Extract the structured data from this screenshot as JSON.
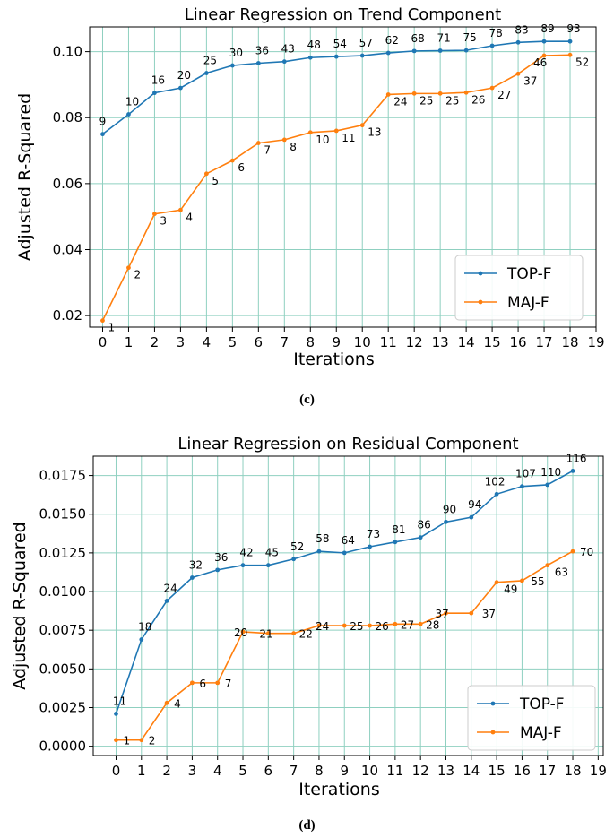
{
  "chart_data": [
    {
      "type": "line",
      "title": "Linear Regression on Trend Component",
      "xlabel": "Iterations",
      "ylabel": "Adjusted R-Squared",
      "caption": "(c)",
      "xlim": [
        -0.5,
        19
      ],
      "ylim": [
        0.0165,
        0.1075
      ],
      "xticks": [
        "0",
        "1",
        "2",
        "3",
        "4",
        "5",
        "6",
        "7",
        "8",
        "9",
        "10",
        "11",
        "12",
        "13",
        "14",
        "15",
        "16",
        "17",
        "18",
        "19"
      ],
      "yticks": [
        "0.02",
        "0.04",
        "0.06",
        "0.08",
        "0.10"
      ],
      "ytick_values": [
        0.02,
        0.04,
        0.06,
        0.08,
        0.1
      ],
      "grid": true,
      "legend_position": "lower-right",
      "series": [
        {
          "name": "TOP-F",
          "color": "#1f77b4",
          "x": [
            0,
            1,
            2,
            3,
            4,
            5,
            6,
            7,
            8,
            9,
            10,
            11,
            12,
            13,
            14,
            15,
            16,
            17,
            18
          ],
          "values": [
            0.075,
            0.081,
            0.0875,
            0.089,
            0.0935,
            0.0958,
            0.0965,
            0.097,
            0.0982,
            0.0985,
            0.0988,
            0.0996,
            0.1002,
            0.1003,
            0.1004,
            0.1018,
            0.1028,
            0.1031,
            0.1031
          ],
          "labels": [
            "9",
            "10",
            "16",
            "20",
            "25",
            "30",
            "36",
            "43",
            "48",
            "54",
            "57",
            "62",
            "68",
            "71",
            "75",
            "78",
            "83",
            "89",
            "93"
          ]
        },
        {
          "name": "MAJ-F",
          "color": "#ff7f0e",
          "x": [
            0,
            1,
            2,
            3,
            4,
            5,
            6,
            7,
            8,
            9,
            10,
            11,
            12,
            13,
            14,
            15,
            16,
            17,
            18
          ],
          "values": [
            0.0185,
            0.0345,
            0.0508,
            0.052,
            0.063,
            0.067,
            0.0723,
            0.0733,
            0.0755,
            0.076,
            0.0777,
            0.087,
            0.0873,
            0.0873,
            0.0876,
            0.089,
            0.0933,
            0.0988,
            0.099
          ],
          "labels": [
            "1",
            "2",
            "3",
            "4",
            "5",
            "6",
            "7",
            "8",
            "10",
            "11",
            "13",
            "24",
            "25",
            "25",
            "26",
            "27",
            "37",
            "46",
            "52"
          ]
        }
      ]
    },
    {
      "type": "line",
      "title": "Linear Regression on Residual Component",
      "xlabel": "Iterations",
      "ylabel": "Adjusted R-Squared",
      "caption": "(d)",
      "xlim": [
        -0.9,
        19.2
      ],
      "ylim": [
        -0.0006,
        0.01875
      ],
      "xticks": [
        "0",
        "1",
        "2",
        "3",
        "4",
        "5",
        "6",
        "7",
        "8",
        "9",
        "10",
        "11",
        "12",
        "13",
        "14",
        "15",
        "16",
        "17",
        "18",
        "19"
      ],
      "yticks": [
        "0.0000",
        "0.0025",
        "0.0050",
        "0.0075",
        "0.0100",
        "0.0125",
        "0.0150",
        "0.0175"
      ],
      "ytick_values": [
        0.0,
        0.0025,
        0.005,
        0.0075,
        0.01,
        0.0125,
        0.015,
        0.0175
      ],
      "grid": true,
      "legend_position": "lower-right",
      "series": [
        {
          "name": "TOP-F",
          "color": "#1f77b4",
          "x": [
            0,
            1,
            2,
            3,
            4,
            5,
            6,
            7,
            8,
            9,
            10,
            11,
            12,
            13,
            14,
            15,
            16,
            17,
            18
          ],
          "values": [
            0.0021,
            0.0069,
            0.0094,
            0.0109,
            0.0114,
            0.0117,
            0.0117,
            0.0121,
            0.0126,
            0.0125,
            0.0129,
            0.0132,
            0.0135,
            0.0145,
            0.0148,
            0.0163,
            0.0168,
            0.0169,
            0.0178
          ],
          "labels": [
            "11",
            "18",
            "24",
            "32",
            "36",
            "42",
            "45",
            "52",
            "58",
            "64",
            "73",
            "81",
            "86",
            "90",
            "94",
            "102",
            "107",
            "110",
            "116"
          ]
        },
        {
          "name": "MAJ-F",
          "color": "#ff7f0e",
          "x": [
            0,
            1,
            2,
            3,
            4,
            5,
            6,
            7,
            8,
            9,
            10,
            11,
            12,
            13,
            14,
            15,
            16,
            17,
            18
          ],
          "values": [
            0.0004,
            0.0004,
            0.0028,
            0.0041,
            0.0041,
            0.0074,
            0.0073,
            0.0073,
            0.0078,
            0.0078,
            0.0078,
            0.0079,
            0.0079,
            0.0086,
            0.0086,
            0.0106,
            0.0107,
            0.0117,
            0.0126
          ],
          "labels": [
            "1",
            "2",
            "4",
            "6",
            "7",
            "20",
            "21",
            "22",
            "24",
            "25",
            "26",
            "27",
            "28",
            "37",
            "37",
            "49",
            "55",
            "63",
            "70"
          ]
        }
      ]
    }
  ]
}
